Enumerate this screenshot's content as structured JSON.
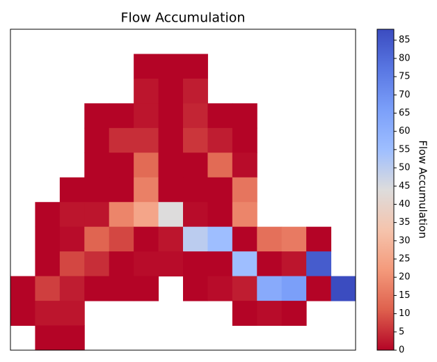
{
  "chart_data": {
    "type": "heatmap",
    "title": "Flow Accumulation",
    "colorbar_label": "Flow Accumulation",
    "z": [
      [
        null,
        null,
        null,
        null,
        null,
        null,
        null,
        null,
        null,
        null,
        null,
        null,
        null,
        null
      ],
      [
        null,
        null,
        null,
        null,
        null,
        0,
        0,
        0,
        null,
        null,
        null,
        null,
        null,
        null
      ],
      [
        null,
        null,
        null,
        null,
        null,
        2,
        0,
        3,
        null,
        null,
        null,
        null,
        null,
        null
      ],
      [
        null,
        null,
        null,
        0,
        0,
        2,
        0,
        4,
        0,
        0,
        null,
        null,
        null,
        null
      ],
      [
        null,
        null,
        null,
        0,
        5,
        5,
        0,
        6,
        3,
        0,
        null,
        null,
        null,
        null
      ],
      [
        null,
        null,
        null,
        0,
        0,
        13,
        0,
        0,
        13,
        1,
        null,
        null,
        null,
        null
      ],
      [
        null,
        null,
        0,
        0,
        0,
        17,
        0,
        0,
        0,
        15,
        null,
        null,
        null,
        null
      ],
      [
        null,
        0,
        2,
        2,
        18,
        25,
        44,
        1,
        0,
        18,
        null,
        null,
        null,
        null
      ],
      [
        null,
        0,
        1,
        12,
        8,
        0,
        2,
        50,
        55,
        0,
        14,
        16,
        0,
        null
      ],
      [
        null,
        0,
        8,
        5,
        0,
        1,
        1,
        0,
        0,
        55,
        0,
        2,
        84,
        null
      ],
      [
        0,
        7,
        3,
        0,
        0,
        0,
        null,
        0,
        1,
        3,
        62,
        66,
        0,
        88
      ],
      [
        0,
        2,
        2,
        null,
        null,
        null,
        null,
        null,
        null,
        0,
        1,
        0,
        null,
        null
      ],
      [
        null,
        0,
        0,
        null,
        null,
        null,
        null,
        null,
        null,
        null,
        null,
        null,
        null,
        null
      ]
    ],
    "clim": [
      0,
      88
    ],
    "cticks": [
      0,
      5,
      10,
      15,
      20,
      25,
      30,
      35,
      40,
      45,
      50,
      55,
      60,
      65,
      70,
      75,
      80,
      85
    ],
    "colormap": [
      "#b40426",
      "#de604d",
      "#f49a7b",
      "#f5c4ad",
      "#dddcdc",
      "#9ebeff",
      "#7b9ff9",
      "#5977e3",
      "#3b4cc0"
    ]
  }
}
